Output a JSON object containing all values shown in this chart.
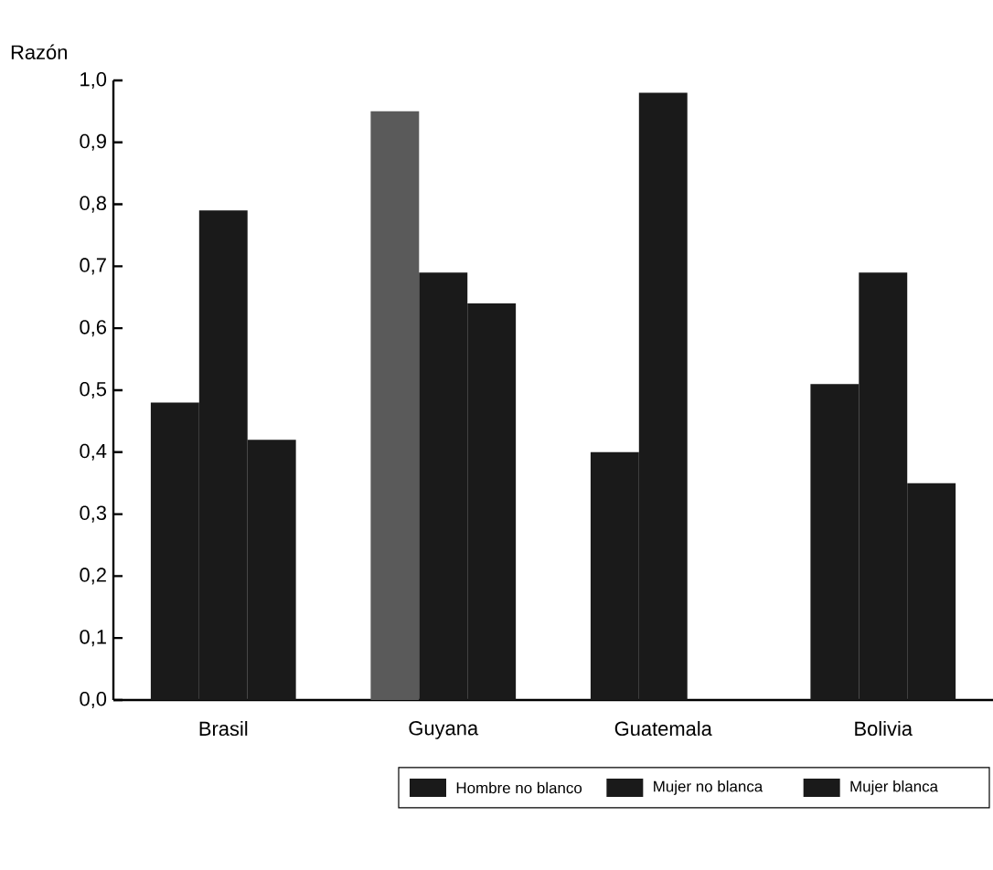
{
  "chart_data": {
    "type": "bar",
    "ylabel": "Razón",
    "categories": [
      "Brasil",
      "Guyana",
      "Guatemala",
      "Bolivia"
    ],
    "series": [
      {
        "name": "Hombre no blanco",
        "color": "#1a1a1a",
        "colors": [
          "#1a1a1a",
          "#5a5a5a",
          "#1a1a1a",
          "#1a1a1a"
        ],
        "values": [
          0.48,
          0.95,
          0.4,
          0.51
        ]
      },
      {
        "name": "Mujer no blanca",
        "color": "#1a1a1a",
        "values": [
          0.79,
          0.69,
          0.98,
          0.69
        ]
      },
      {
        "name": "Mujer blanca",
        "color": "#1a1a1a",
        "values": [
          0.42,
          0.64,
          null,
          0.35
        ]
      }
    ],
    "ylim": [
      0,
      1.0
    ],
    "yticks": [
      {
        "value": 0,
        "label": "0,0"
      },
      {
        "value": 0.1,
        "label": "0,1"
      },
      {
        "value": 0.2,
        "label": "0,2"
      },
      {
        "value": 0.3,
        "label": "0,3"
      },
      {
        "value": 0.4,
        "label": "0,4"
      },
      {
        "value": 0.5,
        "label": "0,5"
      },
      {
        "value": 0.6,
        "label": "0,6"
      },
      {
        "value": 0.7,
        "label": "0,7"
      },
      {
        "value": 0.8,
        "label": "0,8"
      },
      {
        "value": 0.9,
        "label": "0,9"
      },
      {
        "value": 1.0,
        "label": "1,0"
      }
    ],
    "grid": false,
    "legend": "bottom"
  }
}
